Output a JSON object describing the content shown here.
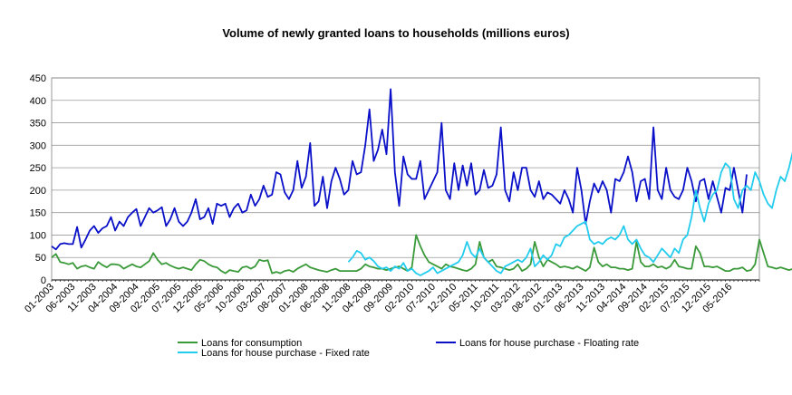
{
  "chart_data": {
    "type": "line",
    "title": "Volume of newly granted  loans to households  (millions euros)",
    "ylim": [
      0,
      450
    ],
    "yticks": [
      0,
      50,
      100,
      150,
      200,
      250,
      300,
      350,
      400,
      450
    ],
    "grid": "horizontal",
    "legend_position": "bottom",
    "x_tick_labels": [
      "01-2003",
      "06-2003",
      "11-2003",
      "04-2004",
      "09-2004",
      "02-2005",
      "07-2005",
      "12-2005",
      "05-2006",
      "10-2006",
      "03-2007",
      "08-2007",
      "01-2008",
      "06-2008",
      "11-2008",
      "04-2009",
      "09-2009",
      "02-2010",
      "07-2010",
      "12-2010",
      "05-2011",
      "10-2011",
      "03-2012",
      "08-2012",
      "01-2013",
      "06-2013",
      "11-2013",
      "04-2014",
      "09-2014",
      "02-2015",
      "07-2015",
      "12-2015",
      "05-2016"
    ],
    "series": [
      {
        "name": "Loans for consumption",
        "color": "#3a9a3a",
        "start_index": 0,
        "values": [
          50,
          58,
          40,
          38,
          35,
          38,
          25,
          30,
          32,
          28,
          25,
          40,
          33,
          28,
          35,
          35,
          33,
          25,
          30,
          35,
          30,
          28,
          35,
          42,
          60,
          45,
          35,
          38,
          32,
          28,
          25,
          28,
          25,
          22,
          35,
          45,
          42,
          35,
          30,
          28,
          20,
          15,
          22,
          20,
          18,
          28,
          30,
          25,
          30,
          45,
          42,
          44,
          15,
          18,
          15,
          20,
          22,
          18,
          25,
          30,
          35,
          28,
          25,
          22,
          20,
          18,
          22,
          25,
          20,
          20,
          20,
          20,
          20,
          25,
          35,
          30,
          28,
          25,
          25,
          22,
          25,
          28,
          30,
          25,
          20,
          28,
          100,
          75,
          55,
          40,
          35,
          30,
          25,
          35,
          30,
          28,
          25,
          22,
          20,
          25,
          35,
          85,
          50,
          40,
          45,
          30,
          28,
          25,
          22,
          25,
          35,
          20,
          25,
          35,
          85,
          50,
          30,
          45,
          40,
          35,
          28,
          30,
          28,
          25,
          30,
          25,
          20,
          28,
          72,
          40,
          30,
          35,
          28,
          28,
          25,
          25,
          22,
          25,
          85,
          40,
          30,
          30,
          35,
          28,
          30,
          25,
          30,
          45,
          30,
          28,
          25,
          25,
          75,
          60,
          30,
          30,
          28,
          30,
          25,
          20,
          20,
          25,
          25,
          28,
          20,
          22,
          35,
          90,
          60,
          30,
          28,
          25,
          28,
          25,
          22,
          25
        ]
      },
      {
        "name": "Loans for house purchase - Floating rate",
        "color": "#0a10c8",
        "start_index": 0,
        "values": [
          75,
          68,
          80,
          82,
          80,
          80,
          118,
          72,
          90,
          110,
          120,
          105,
          115,
          120,
          140,
          110,
          130,
          120,
          140,
          150,
          158,
          120,
          140,
          160,
          150,
          155,
          162,
          120,
          135,
          160,
          130,
          120,
          130,
          150,
          180,
          135,
          140,
          160,
          125,
          170,
          165,
          170,
          140,
          160,
          170,
          150,
          155,
          190,
          165,
          180,
          210,
          185,
          190,
          240,
          235,
          195,
          180,
          200,
          265,
          205,
          230,
          305,
          165,
          175,
          230,
          160,
          220,
          250,
          225,
          190,
          200,
          265,
          235,
          240,
          300,
          380,
          265,
          290,
          335,
          280,
          425,
          240,
          165,
          275,
          235,
          225,
          225,
          265,
          180,
          200,
          220,
          240,
          350,
          200,
          180,
          260,
          200,
          255,
          210,
          260,
          190,
          200,
          245,
          205,
          210,
          235,
          340,
          200,
          175,
          240,
          200,
          250,
          250,
          200,
          185,
          220,
          180,
          195,
          190,
          180,
          170,
          200,
          180,
          150,
          250,
          200,
          125,
          175,
          215,
          195,
          220,
          200,
          150,
          225,
          220,
          240,
          275,
          240,
          175,
          220,
          225,
          180,
          340,
          200,
          180,
          250,
          200,
          185,
          180,
          200,
          250,
          220,
          175,
          220,
          225,
          180,
          220,
          185,
          150,
          205,
          200,
          250,
          200,
          150,
          235
        ]
      },
      {
        "name": "Loans for house purchase - Fixed rate",
        "color": "#22ccee",
        "start_index": 70,
        "values": [
          40,
          50,
          65,
          60,
          45,
          50,
          42,
          30,
          25,
          28,
          20,
          30,
          25,
          38,
          20,
          25,
          15,
          10,
          15,
          20,
          28,
          15,
          20,
          25,
          30,
          35,
          40,
          55,
          85,
          60,
          50,
          70,
          50,
          40,
          30,
          20,
          15,
          30,
          35,
          40,
          45,
          40,
          50,
          70,
          30,
          40,
          55,
          45,
          55,
          80,
          75,
          95,
          100,
          110,
          120,
          125,
          130,
          90,
          80,
          85,
          80,
          90,
          95,
          90,
          100,
          120,
          90,
          80,
          90,
          70,
          55,
          50,
          40,
          55,
          70,
          60,
          50,
          70,
          60,
          90,
          100,
          140,
          200,
          160,
          130,
          170,
          190,
          200,
          240,
          260,
          250,
          180,
          160,
          200,
          210,
          200,
          240,
          220,
          190,
          170,
          160,
          200,
          230,
          220,
          250,
          290,
          210,
          240,
          270
        ]
      }
    ]
  }
}
